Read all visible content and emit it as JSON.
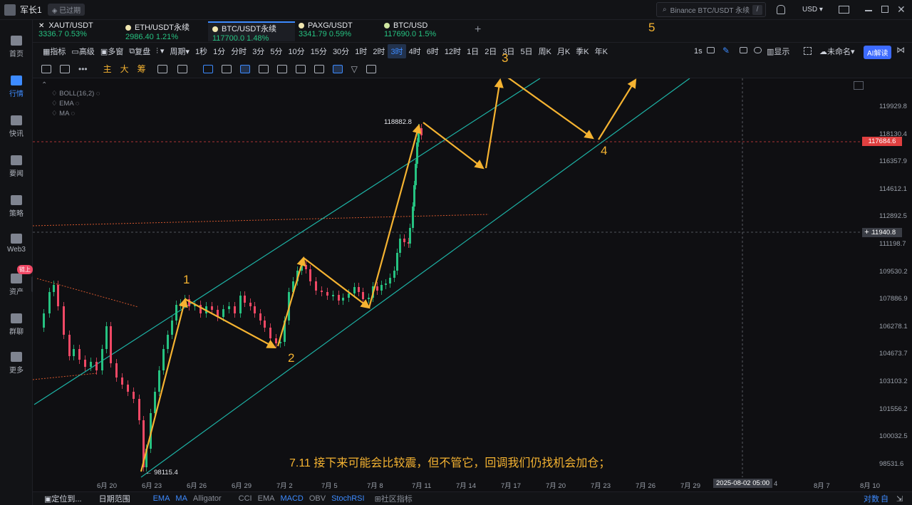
{
  "topbar": {
    "username": "军长1",
    "expired": "已过期",
    "search_placeholder": "Binance BTC/USDT 永续",
    "search_key": "/",
    "currency": "USD"
  },
  "nav": [
    {
      "label": "首页"
    },
    {
      "label": "行情"
    },
    {
      "label": "快讯"
    },
    {
      "label": "要闻"
    },
    {
      "label": "策略"
    },
    {
      "label": "Web3"
    },
    {
      "label": "资产",
      "badge": "链上"
    },
    {
      "label": "群聊"
    },
    {
      "label": "更多"
    }
  ],
  "tickers": [
    {
      "name": "XAUT/USDT",
      "price": "3336.7",
      "change": "0.53%",
      "dot": "#ffffff"
    },
    {
      "name": "ETH/USDT永续",
      "price": "2986.40",
      "change": "1.21%",
      "dot": "#f0e6b0"
    },
    {
      "name": "BTC/USDT永续",
      "price": "117700.0",
      "change": "1.48%",
      "dot": "#f0e6b0"
    },
    {
      "name": "PAXG/USDT",
      "price": "3341.79",
      "change": "0.59%",
      "dot": "#f0e6b0"
    },
    {
      "name": "BTC/USD",
      "price": "117690.0",
      "change": "1.5%",
      "dot": "#cfe6a0"
    }
  ],
  "add_tab": "+",
  "toolbar1": {
    "left": [
      "指标",
      "高级",
      "多窗",
      "复盘"
    ],
    "period_label": "周期",
    "periods": [
      "1秒",
      "1分",
      "分时",
      "3分",
      "5分",
      "10分",
      "15分",
      "30分",
      "1时",
      "2时",
      "3时",
      "4时",
      "6时",
      "12时",
      "1日",
      "2日",
      "3日",
      "5日",
      "周K",
      "月K",
      "季K",
      "年K"
    ],
    "active_period": "3时",
    "right": {
      "resolution": "1s",
      "display": "显示",
      "name": "未命名",
      "ai": "AI解读"
    }
  },
  "toolbar2": [
    "主",
    "大",
    "筹"
  ],
  "indicators": [
    "BOLL(16,2)",
    "EMA",
    "MA"
  ],
  "price_axis": [
    "119929.8",
    "118130.4",
    "116357.9",
    "114612.1",
    "112892.5",
    "111198.7",
    "109530.2",
    "107886.9",
    "106278.1",
    "104673.7",
    "103103.2",
    "101556.2",
    "100032.5",
    "98531.6"
  ],
  "price_tags": {
    "current": "117684.6",
    "crosshair": "111940.8"
  },
  "date_axis": [
    "6月 20",
    "6月 23",
    "6月 26",
    "6月 29",
    "7月 2",
    "7月 5",
    "7月 8",
    "7月 11",
    "7月 14",
    "7月 17",
    "7月 20",
    "7月 23",
    "7月 26",
    "7月 29",
    "4",
    "8月 7",
    "8月 10"
  ],
  "date_crosshair": "2025-08-02 05:00",
  "chart_annotations": {
    "high_label": "118882.8",
    "low_label": "98115.4",
    "waves": [
      "1",
      "2",
      "3",
      "4",
      "5"
    ],
    "note": "7.11 接下来可能会比较震，但不管它，回调我们仍找机会加仓；"
  },
  "bottombar": {
    "locate": "定位到...",
    "date_range": "日期范围",
    "indicators": [
      "EMA",
      "MA",
      "Alligator",
      "CCI",
      "EMA",
      "MACD",
      "OBV",
      "StochRSI",
      "社区指标"
    ],
    "right": [
      "对数",
      "自"
    ]
  },
  "colors": {
    "up": "#26c281",
    "down": "#f04865",
    "accent": "#3d8bff",
    "channel": "#1db3a6",
    "wave": "#f5b331"
  }
}
